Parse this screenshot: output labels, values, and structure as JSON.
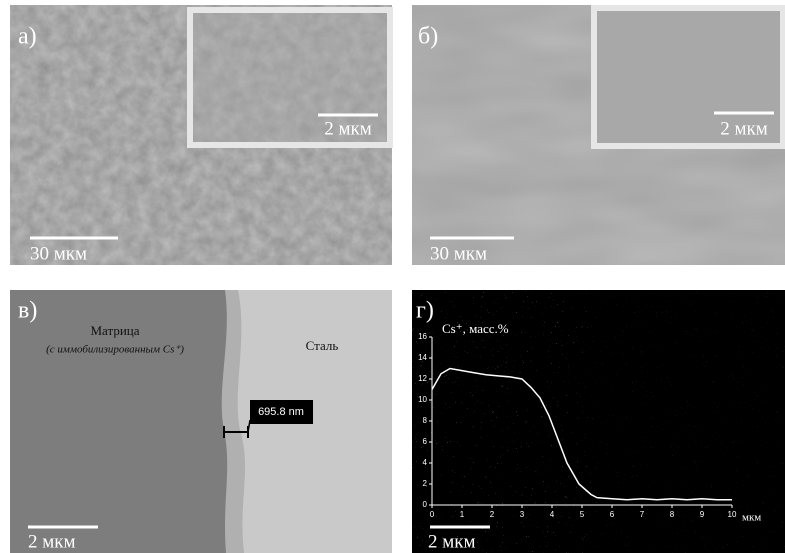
{
  "panels": [
    {
      "label": "а)",
      "inset_scale": "2 мкм",
      "scale": "30 мкм"
    },
    {
      "label": "б)",
      "inset_scale": "2 мкм",
      "scale": "30 мкм"
    },
    {
      "label": "в)",
      "matrix": "Матрица",
      "matrix_note": "(с иммобилизированным Cs⁺)",
      "steel": "Сталь",
      "thickness": "695.8 nm",
      "scale": "2 мкм"
    },
    {
      "label": "г)",
      "scale": "2 мкм",
      "profile": {
        "y_label": "Cs⁺, масс.%",
        "x_unit": "мкм",
        "x": [
          0,
          0.3,
          0.6,
          1,
          1.4,
          1.8,
          2.2,
          2.6,
          3,
          3.3,
          3.6,
          3.9,
          4.1,
          4.3,
          4.5,
          4.7,
          4.9,
          5.1,
          5.3,
          5.5,
          6,
          6.5,
          7,
          7.5,
          8,
          8.5,
          9,
          9.5,
          10
        ],
        "values": [
          11,
          12.5,
          13,
          12.8,
          12.6,
          12.4,
          12.3,
          12.2,
          12,
          11.2,
          10.2,
          8.5,
          7,
          5.5,
          4,
          3,
          2,
          1.5,
          1,
          0.7,
          0.6,
          0.5,
          0.6,
          0.5,
          0.6,
          0.5,
          0.6,
          0.5,
          0.5
        ],
        "xlim": [
          0,
          10
        ],
        "ylim": [
          0,
          16
        ],
        "xticks": [
          0,
          1,
          2,
          3,
          4,
          5,
          6,
          7,
          8,
          9,
          10
        ],
        "yticks": [
          0,
          2,
          4,
          6,
          8,
          10,
          12,
          14,
          16
        ]
      }
    }
  ]
}
